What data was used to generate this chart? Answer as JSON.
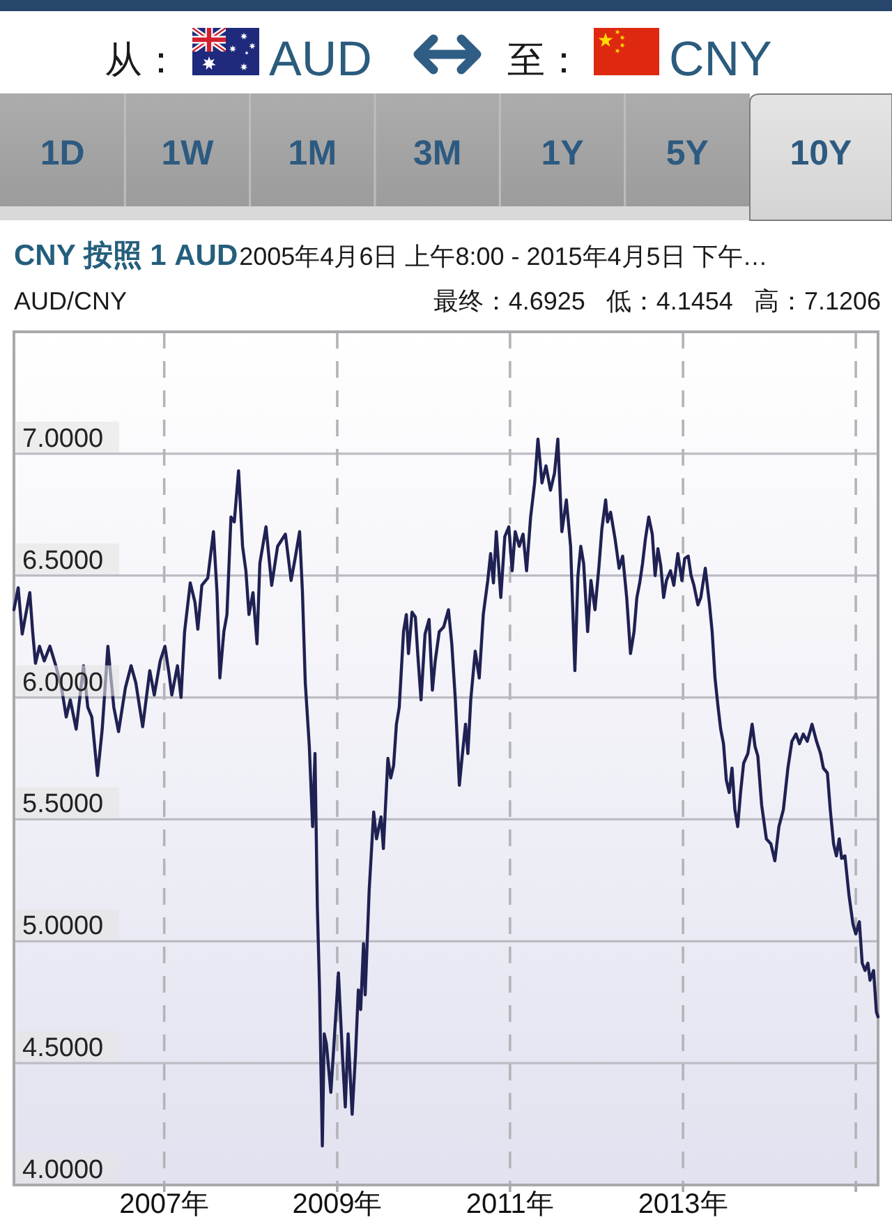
{
  "chart_data": {
    "type": "line",
    "title": "CNY 按照 1 AUD",
    "subtitle": "2005年4月6日 上午8:00 - 2015年4月5日 下午…",
    "annotations": [
      "从：",
      "AUD",
      "至：",
      "CNY",
      "1D",
      "1W",
      "1M",
      "3M",
      "1Y",
      "5Y",
      "10Y",
      "AUD/CNY",
      "最终：4.6925",
      "低：4.1454",
      "高：7.1206"
    ],
    "xlim": [
      "2005-04-06",
      "2015-04-05"
    ],
    "xticks": [
      {
        "value": "2007-01-01",
        "label": "2007年"
      },
      {
        "value": "2009-01-01",
        "label": "2009年"
      },
      {
        "value": "2011-01-01",
        "label": "2011年"
      },
      {
        "value": "2013-01-01",
        "label": "2013年"
      },
      {
        "value": "2015-01-01",
        "label": null
      }
    ],
    "ylim": [
      4,
      7.5
    ],
    "yticks": [
      {
        "value": 4,
        "label": "4.0000"
      },
      {
        "value": 4.5,
        "label": "4.5000"
      },
      {
        "value": 5,
        "label": "5.0000"
      },
      {
        "value": 5.5,
        "label": "5.5000"
      },
      {
        "value": 6,
        "label": "6.0000"
      },
      {
        "value": 6.5,
        "label": "6.5000"
      },
      {
        "value": 7,
        "label": "7.0000"
      }
    ],
    "grid": true,
    "x": [
      "2005-04-06",
      "2005-04-24",
      "2005-05-11",
      "2005-05-26",
      "2005-06-12",
      "2005-06-24",
      "2005-07-06",
      "2005-07-23",
      "2005-08-12",
      "2005-09-05",
      "2005-09-30",
      "2005-10-24",
      "2005-11-13",
      "2005-11-30",
      "2005-12-25",
      "2006-01-25",
      "2006-02-12",
      "2006-03-01",
      "2006-03-25",
      "2006-04-14",
      "2006-05-08",
      "2006-06-02",
      "2006-06-22",
      "2006-07-21",
      "2006-08-14",
      "2006-09-03",
      "2006-10-02",
      "2006-11-01",
      "2006-11-20",
      "2006-12-15",
      "2007-01-04",
      "2007-01-21",
      "2007-02-02",
      "2007-02-26",
      "2007-03-13",
      "2007-03-28",
      "2007-04-21",
      "2007-05-11",
      "2007-05-23",
      "2007-06-09",
      "2007-07-04",
      "2007-07-28",
      "2007-08-12",
      "2007-08-24",
      "2007-09-10",
      "2007-09-23",
      "2007-10-10",
      "2007-10-24",
      "2007-11-11",
      "2007-11-28",
      "2007-12-12",
      "2007-12-25",
      "2008-01-11",
      "2008-01-28",
      "2008-02-09",
      "2008-03-06",
      "2008-03-30",
      "2008-04-24",
      "2008-05-27",
      "2008-06-20",
      "2008-07-07",
      "2008-07-26",
      "2008-08-07",
      "2008-08-19",
      "2008-09-05",
      "2008-09-19",
      "2008-09-29",
      "2008-10-09",
      "2008-10-18",
      "2008-10-30",
      "2008-11-07",
      "2008-11-16",
      "2008-12-05",
      "2008-12-17",
      "2009-01-06",
      "2009-01-23",
      "2009-02-04",
      "2009-02-16",
      "2009-03-05",
      "2009-03-19",
      "2009-03-31",
      "2009-04-10",
      "2009-04-22",
      "2009-04-29",
      "2009-05-16",
      "2009-06-04",
      "2009-06-16",
      "2009-07-05",
      "2009-07-15",
      "2009-08-03",
      "2009-08-15",
      "2009-08-27",
      "2009-09-08",
      "2009-09-20",
      "2009-10-08",
      "2009-10-20",
      "2009-10-29",
      "2009-11-13",
      "2009-11-27",
      "2009-12-07",
      "2009-12-21",
      "2010-01-07",
      "2010-01-24",
      "2010-02-07",
      "2010-02-19",
      "2010-03-08",
      "2010-03-27",
      "2010-04-16",
      "2010-04-30",
      "2010-05-15",
      "2010-06-01",
      "2010-06-13",
      "2010-06-27",
      "2010-07-07",
      "2010-07-19",
      "2010-08-07",
      "2010-08-24",
      "2010-09-10",
      "2010-09-29",
      "2010-10-11",
      "2010-10-23",
      "2010-11-04",
      "2010-11-23",
      "2010-12-10",
      "2010-12-27",
      "2011-01-10",
      "2011-01-23",
      "2011-02-09",
      "2011-02-25",
      "2011-03-12",
      "2011-03-29",
      "2011-04-15",
      "2011-04-29",
      "2011-05-16",
      "2011-06-02",
      "2011-06-21",
      "2011-07-08",
      "2011-07-22",
      "2011-08-08",
      "2011-08-27",
      "2011-09-14",
      "2011-10-02",
      "2011-10-15",
      "2011-10-27",
      "2011-11-08",
      "2011-11-25",
      "2011-12-09",
      "2011-12-26",
      "2012-01-12",
      "2012-01-24",
      "2012-02-09",
      "2012-02-17",
      "2012-03-01",
      "2012-03-20",
      "2012-04-06",
      "2012-04-21",
      "2012-05-08",
      "2012-05-24",
      "2012-06-08",
      "2012-06-20",
      "2012-07-02",
      "2012-07-14",
      "2012-07-26",
      "2012-08-09",
      "2012-08-24",
      "2012-09-05",
      "2012-09-17",
      "2012-09-29",
      "2012-10-11",
      "2012-10-23",
      "2012-11-09",
      "2012-11-23",
      "2012-12-10",
      "2012-12-27",
      "2013-01-08",
      "2013-01-23",
      "2013-02-04",
      "2013-02-16",
      "2013-03-05",
      "2013-03-17",
      "2013-04-05",
      "2013-04-22",
      "2013-05-04",
      "2013-05-16",
      "2013-05-28",
      "2013-06-09",
      "2013-06-21",
      "2013-07-03",
      "2013-07-15",
      "2013-07-27",
      "2013-08-08",
      "2013-08-20",
      "2013-09-01",
      "2013-09-14",
      "2013-10-02",
      "2013-10-20",
      "2013-11-01",
      "2013-11-13",
      "2013-11-29",
      "2013-12-19",
      "2014-01-07",
      "2014-01-24",
      "2014-02-10",
      "2014-03-01",
      "2014-03-20",
      "2014-04-06",
      "2014-04-23",
      "2014-05-08",
      "2014-05-24",
      "2014-06-10",
      "2014-06-30",
      "2014-07-19",
      "2014-08-05",
      "2014-08-17",
      "2014-09-03",
      "2014-09-15",
      "2014-09-29",
      "2014-10-11",
      "2014-10-23",
      "2014-11-02",
      "2014-11-16",
      "2014-12-03",
      "2014-12-20",
      "2015-01-01",
      "2015-01-16",
      "2015-01-28",
      "2015-02-09",
      "2015-02-21",
      "2015-03-02",
      "2015-03-17",
      "2015-03-29",
      "2015-04-05"
    ],
    "series": [
      {
        "color": "#1f2152",
        "values": [
          6.36,
          6.45,
          6.26,
          6.34,
          6.43,
          6.27,
          6.14,
          6.21,
          6.15,
          6.21,
          6.13,
          6.04,
          5.92,
          5.99,
          5.87,
          6.13,
          5.96,
          5.92,
          5.68,
          5.87,
          6.21,
          5.96,
          5.86,
          6.04,
          6.13,
          6.06,
          5.88,
          6.11,
          6.01,
          6.15,
          6.21,
          6.1,
          6.01,
          6.13,
          6.0,
          6.27,
          6.47,
          6.39,
          6.28,
          6.46,
          6.49,
          6.68,
          6.43,
          6.08,
          6.27,
          6.34,
          6.74,
          6.72,
          6.93,
          6.62,
          6.52,
          6.34,
          6.43,
          6.22,
          6.55,
          6.7,
          6.46,
          6.62,
          6.67,
          6.48,
          6.57,
          6.68,
          6.43,
          6.06,
          5.8,
          5.47,
          5.77,
          5.14,
          4.81,
          4.16,
          4.62,
          4.58,
          4.38,
          4.56,
          4.87,
          4.53,
          4.32,
          4.62,
          4.29,
          4.53,
          4.8,
          4.72,
          4.99,
          4.78,
          5.21,
          5.53,
          5.42,
          5.51,
          5.38,
          5.75,
          5.67,
          5.72,
          5.89,
          5.96,
          6.27,
          6.34,
          6.18,
          6.35,
          6.33,
          6.18,
          5.99,
          6.26,
          6.32,
          6.03,
          6.15,
          6.27,
          6.29,
          6.36,
          6.22,
          5.99,
          5.64,
          5.76,
          5.89,
          5.77,
          5.99,
          6.19,
          6.08,
          6.34,
          6.48,
          6.59,
          6.47,
          6.68,
          6.41,
          6.66,
          6.7,
          6.52,
          6.68,
          6.62,
          6.67,
          6.52,
          6.74,
          6.88,
          7.06,
          6.88,
          6.95,
          6.85,
          6.92,
          7.06,
          6.68,
          6.81,
          6.62,
          6.11,
          6.5,
          6.62,
          6.55,
          6.27,
          6.48,
          6.36,
          6.54,
          6.69,
          6.81,
          6.72,
          6.76,
          6.65,
          6.53,
          6.58,
          6.41,
          6.18,
          6.27,
          6.41,
          6.47,
          6.55,
          6.65,
          6.74,
          6.67,
          6.5,
          6.61,
          6.54,
          6.41,
          6.48,
          6.52,
          6.46,
          6.59,
          6.48,
          6.57,
          6.58,
          6.5,
          6.46,
          6.38,
          6.41,
          6.53,
          6.39,
          6.27,
          6.08,
          5.97,
          5.87,
          5.81,
          5.66,
          5.61,
          5.71,
          5.54,
          5.47,
          5.61,
          5.73,
          5.77,
          5.89,
          5.8,
          5.76,
          5.56,
          5.42,
          5.4,
          5.33,
          5.47,
          5.54,
          5.71,
          5.82,
          5.85,
          5.81,
          5.85,
          5.82,
          5.89,
          5.82,
          5.77,
          5.71,
          5.69,
          5.54,
          5.4,
          5.35,
          5.42,
          5.34,
          5.35,
          5.19,
          5.07,
          5.03,
          5.08,
          4.91,
          4.88,
          4.91,
          4.84,
          4.88,
          4.71,
          4.69
        ]
      }
    ]
  }
}
